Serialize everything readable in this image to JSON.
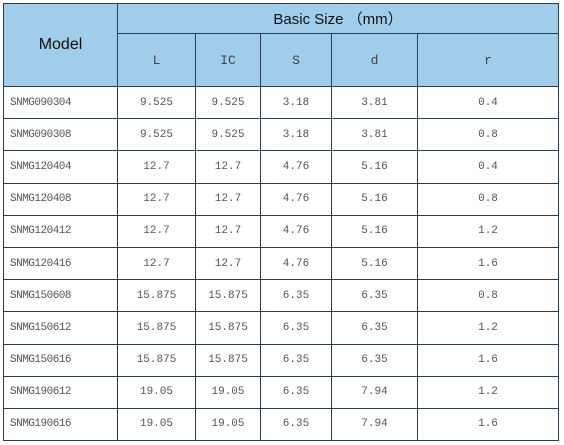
{
  "table": {
    "model_header": "Model",
    "group_header": "Basic Size （mm）",
    "columns": [
      "L",
      "IC",
      "S",
      "d",
      "r"
    ],
    "rows": [
      [
        "SNMG090304",
        "9.525",
        "9.525",
        "3.18",
        "3.81",
        "0.4"
      ],
      [
        "SNMG090308",
        "9.525",
        "9.525",
        "3.18",
        "3.81",
        "0.8"
      ],
      [
        "SNMG120404",
        "12.7",
        "12.7",
        "4.76",
        "5.16",
        "0.4"
      ],
      [
        "SNMG120408",
        "12.7",
        "12.7",
        "4.76",
        "5.16",
        "0.8"
      ],
      [
        "SNMG120412",
        "12.7",
        "12.7",
        "4.76",
        "5.16",
        "1.2"
      ],
      [
        "SNMG120416",
        "12.7",
        "12.7",
        "4.76",
        "5.16",
        "1.6"
      ],
      [
        "SNMG150608",
        "15.875",
        "15.875",
        "6.35",
        "6.35",
        "0.8"
      ],
      [
        "SNMG150612",
        "15.875",
        "15.875",
        "6.35",
        "6.35",
        "1.2"
      ],
      [
        "SNMG150616",
        "15.875",
        "15.875",
        "6.35",
        "6.35",
        "1.6"
      ],
      [
        "SNMG190612",
        "19.05",
        "19.05",
        "6.35",
        "7.94",
        "1.2"
      ],
      [
        "SNMG190616",
        "19.05",
        "19.05",
        "6.35",
        "7.94",
        "1.6"
      ]
    ]
  }
}
